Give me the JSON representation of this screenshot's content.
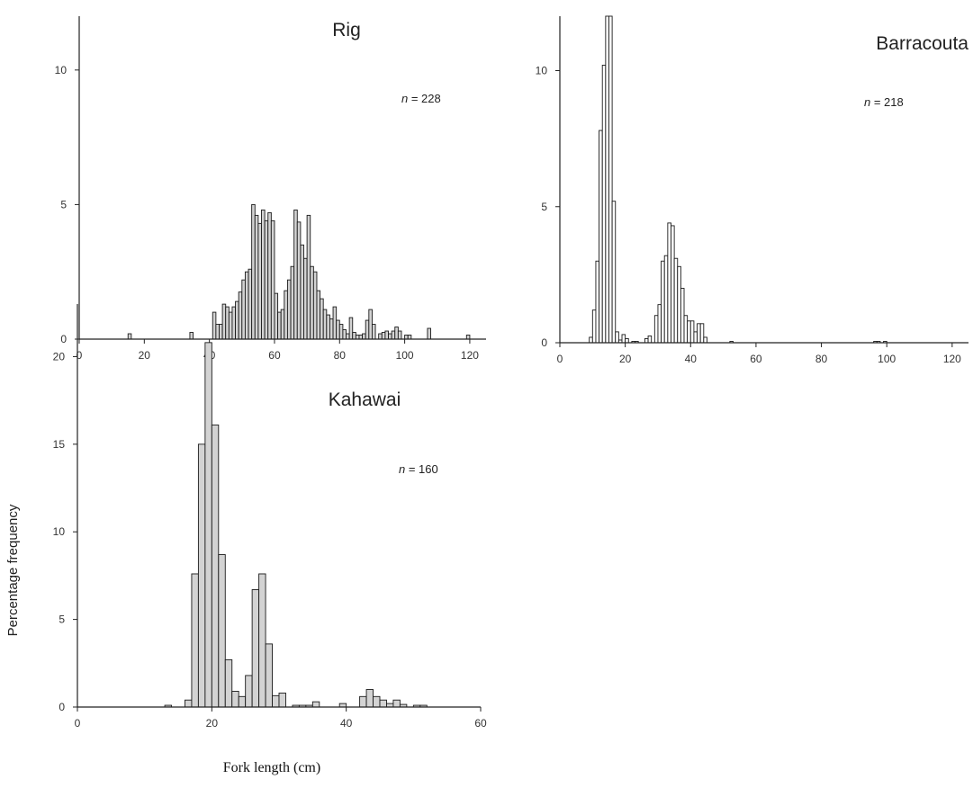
{
  "figure": {
    "ylabel": "Percentage frequency",
    "xlabel": "Fork length (cm)"
  },
  "chart_data": [
    {
      "type": "bar",
      "title": "Rig",
      "annotation": {
        "prefix": "n",
        "value": "= 228"
      },
      "xlim": [
        0,
        125
      ],
      "ylim": [
        0,
        12
      ],
      "xticks": [
        0,
        20,
        40,
        60,
        80,
        100,
        120
      ],
      "yticks": [
        0,
        5,
        10
      ],
      "bar_width": 1,
      "fill": "#d3d3d3",
      "bars": [
        {
          "x": 15,
          "y": 0.2
        },
        {
          "x": 34,
          "y": 0.25
        },
        {
          "x": 41,
          "y": 1.0
        },
        {
          "x": 42,
          "y": 0.55
        },
        {
          "x": 43,
          "y": 0.55
        },
        {
          "x": 44,
          "y": 1.3
        },
        {
          "x": 45,
          "y": 1.2
        },
        {
          "x": 46,
          "y": 1.0
        },
        {
          "x": 47,
          "y": 1.2
        },
        {
          "x": 48,
          "y": 1.4
        },
        {
          "x": 49,
          "y": 1.75
        },
        {
          "x": 50,
          "y": 2.2
        },
        {
          "x": 51,
          "y": 2.5
        },
        {
          "x": 52,
          "y": 2.6
        },
        {
          "x": 53,
          "y": 5.0
        },
        {
          "x": 54,
          "y": 4.6
        },
        {
          "x": 55,
          "y": 4.3
        },
        {
          "x": 56,
          "y": 4.8
        },
        {
          "x": 57,
          "y": 4.4
        },
        {
          "x": 58,
          "y": 4.7
        },
        {
          "x": 59,
          "y": 4.4
        },
        {
          "x": 60,
          "y": 1.7
        },
        {
          "x": 61,
          "y": 1.0
        },
        {
          "x": 62,
          "y": 1.1
        },
        {
          "x": 63,
          "y": 1.8
        },
        {
          "x": 64,
          "y": 2.2
        },
        {
          "x": 65,
          "y": 2.7
        },
        {
          "x": 66,
          "y": 4.8
        },
        {
          "x": 67,
          "y": 4.35
        },
        {
          "x": 68,
          "y": 3.5
        },
        {
          "x": 69,
          "y": 3.0
        },
        {
          "x": 70,
          "y": 4.6
        },
        {
          "x": 71,
          "y": 2.7
        },
        {
          "x": 72,
          "y": 2.5
        },
        {
          "x": 73,
          "y": 1.8
        },
        {
          "x": 74,
          "y": 1.5
        },
        {
          "x": 75,
          "y": 1.1
        },
        {
          "x": 76,
          "y": 0.9
        },
        {
          "x": 77,
          "y": 0.75
        },
        {
          "x": 78,
          "y": 1.2
        },
        {
          "x": 79,
          "y": 0.7
        },
        {
          "x": 80,
          "y": 0.55
        },
        {
          "x": 81,
          "y": 0.35
        },
        {
          "x": 82,
          "y": 0.2
        },
        {
          "x": 83,
          "y": 0.8
        },
        {
          "x": 84,
          "y": 0.25
        },
        {
          "x": 85,
          "y": 0.15
        },
        {
          "x": 86,
          "y": 0.15
        },
        {
          "x": 87,
          "y": 0.2
        },
        {
          "x": 88,
          "y": 0.7
        },
        {
          "x": 89,
          "y": 1.1
        },
        {
          "x": 90,
          "y": 0.55
        },
        {
          "x": 92,
          "y": 0.2
        },
        {
          "x": 93,
          "y": 0.25
        },
        {
          "x": 94,
          "y": 0.3
        },
        {
          "x": 95,
          "y": 0.2
        },
        {
          "x": 96,
          "y": 0.3
        },
        {
          "x": 97,
          "y": 0.45
        },
        {
          "x": 98,
          "y": 0.3
        },
        {
          "x": 100,
          "y": 0.15
        },
        {
          "x": 101,
          "y": 0.15
        },
        {
          "x": 107,
          "y": 0.4
        },
        {
          "x": 119,
          "y": 0.15
        }
      ]
    },
    {
      "type": "bar",
      "title": "Barracouta",
      "annotation": {
        "prefix": "n",
        "value": "= 218"
      },
      "xlim": [
        0,
        125
      ],
      "ylim": [
        0,
        12
      ],
      "xticks": [
        0,
        20,
        40,
        60,
        80,
        100,
        120
      ],
      "yticks": [
        0,
        5,
        10
      ],
      "bar_width": 1,
      "fill": "#ffffff",
      "bars": [
        {
          "x": 9,
          "y": 0.2
        },
        {
          "x": 10,
          "y": 1.2
        },
        {
          "x": 11,
          "y": 3.0
        },
        {
          "x": 12,
          "y": 7.8
        },
        {
          "x": 13,
          "y": 10.2
        },
        {
          "x": 14,
          "y": 12.5
        },
        {
          "x": 15,
          "y": 12.5
        },
        {
          "x": 16,
          "y": 5.2
        },
        {
          "x": 17,
          "y": 0.4
        },
        {
          "x": 18,
          "y": 0.1
        },
        {
          "x": 19,
          "y": 0.3
        },
        {
          "x": 20,
          "y": 0.15
        },
        {
          "x": 22,
          "y": 0.05
        },
        {
          "x": 23,
          "y": 0.05
        },
        {
          "x": 26,
          "y": 0.15
        },
        {
          "x": 27,
          "y": 0.25
        },
        {
          "x": 29,
          "y": 1.0
        },
        {
          "x": 30,
          "y": 1.4
        },
        {
          "x": 31,
          "y": 3.0
        },
        {
          "x": 32,
          "y": 3.2
        },
        {
          "x": 33,
          "y": 4.4
        },
        {
          "x": 34,
          "y": 4.3
        },
        {
          "x": 35,
          "y": 3.1
        },
        {
          "x": 36,
          "y": 2.8
        },
        {
          "x": 37,
          "y": 2.0
        },
        {
          "x": 38,
          "y": 1.0
        },
        {
          "x": 39,
          "y": 0.8
        },
        {
          "x": 40,
          "y": 0.8
        },
        {
          "x": 41,
          "y": 0.4
        },
        {
          "x": 42,
          "y": 0.7
        },
        {
          "x": 43,
          "y": 0.7
        },
        {
          "x": 44,
          "y": 0.2
        },
        {
          "x": 52,
          "y": 0.05
        },
        {
          "x": 96,
          "y": 0.05
        },
        {
          "x": 97,
          "y": 0.05
        },
        {
          "x": 99,
          "y": 0.05
        }
      ]
    },
    {
      "type": "bar",
      "title": "Kahawai",
      "annotation": {
        "prefix": "n",
        "value": "= 160"
      },
      "xlim": [
        0,
        60
      ],
      "ylim": [
        0,
        23
      ],
      "xticks": [
        0,
        20,
        40,
        60
      ],
      "yticks": [
        0,
        5,
        10,
        15,
        20
      ],
      "bar_width": 1,
      "fill": "#d3d3d3",
      "bars": [
        {
          "x": 13,
          "y": 0.1
        },
        {
          "x": 16,
          "y": 0.4
        },
        {
          "x": 17,
          "y": 7.6
        },
        {
          "x": 18,
          "y": 15.0
        },
        {
          "x": 19,
          "y": 20.8
        },
        {
          "x": 20,
          "y": 16.1
        },
        {
          "x": 21,
          "y": 8.7
        },
        {
          "x": 22,
          "y": 2.7
        },
        {
          "x": 23,
          "y": 0.9
        },
        {
          "x": 24,
          "y": 0.6
        },
        {
          "x": 25,
          "y": 1.8
        },
        {
          "x": 26,
          "y": 6.7
        },
        {
          "x": 27,
          "y": 7.6
        },
        {
          "x": 28,
          "y": 3.6
        },
        {
          "x": 29,
          "y": 0.65
        },
        {
          "x": 30,
          "y": 0.8
        },
        {
          "x": 32,
          "y": 0.1
        },
        {
          "x": 33,
          "y": 0.1
        },
        {
          "x": 34,
          "y": 0.1
        },
        {
          "x": 35,
          "y": 0.3
        },
        {
          "x": 39,
          "y": 0.2
        },
        {
          "x": 42,
          "y": 0.6
        },
        {
          "x": 43,
          "y": 1.0
        },
        {
          "x": 44,
          "y": 0.6
        },
        {
          "x": 45,
          "y": 0.4
        },
        {
          "x": 46,
          "y": 0.2
        },
        {
          "x": 47,
          "y": 0.4
        },
        {
          "x": 48,
          "y": 0.15
        },
        {
          "x": 50,
          "y": 0.1
        },
        {
          "x": 51,
          "y": 0.1
        }
      ]
    }
  ]
}
